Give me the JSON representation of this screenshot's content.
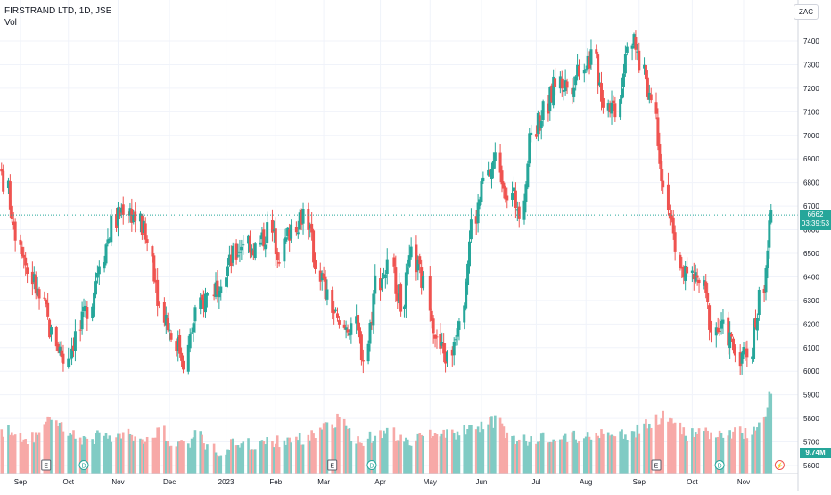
{
  "legend": {
    "symbol_line": "FIRSTRAND LTD, 1D, JSE",
    "volume_label": "Vol"
  },
  "currency": "ZAC",
  "last_price": {
    "value": "6662",
    "countdown": "03:39:53"
  },
  "last_volume": "9.74M",
  "colors": {
    "up": "#26a69a",
    "down": "#ef5350",
    "up_volume": "#80cbc4",
    "down_volume": "#f7a9a7",
    "grid": "#f0f3fa",
    "price_line": "#26a69a"
  },
  "events": [
    {
      "type": "earnings",
      "glyph": "E",
      "date_index": 0
    },
    {
      "type": "dividend",
      "glyph": "D",
      "date_index": 1
    },
    {
      "type": "earnings",
      "glyph": "E",
      "date_index": 2
    },
    {
      "type": "dividend",
      "glyph": "D",
      "date_index": 3
    },
    {
      "type": "earnings",
      "glyph": "E",
      "date_index": 4
    },
    {
      "type": "dividend",
      "glyph": "D",
      "date_index": 5
    },
    {
      "type": "flash",
      "glyph": "⚡",
      "date_index": 6
    }
  ],
  "event_dates": [
    "2022-09-20",
    "2022-10-12",
    "2023-03-06",
    "2023-03-29",
    "2023-09-11",
    "2023-10-18",
    "2023-11-22"
  ],
  "chart_data": {
    "type": "candlestick",
    "title": "FIRSTRAND LTD, 1D, JSE",
    "ylim": [
      5580,
      7550
    ],
    "yticks": [
      5600,
      5700,
      5800,
      5900,
      6000,
      6100,
      6200,
      6300,
      6400,
      6500,
      6600,
      6700,
      6800,
      6900,
      7000,
      7100,
      7200,
      7300,
      7400
    ],
    "xticks": [
      {
        "label": "Sep",
        "date": "2022-09-05"
      },
      {
        "label": "Oct",
        "date": "2022-10-03"
      },
      {
        "label": "Nov",
        "date": "2022-11-01"
      },
      {
        "label": "Dec",
        "date": "2022-12-01"
      },
      {
        "label": "2023",
        "date": "2023-01-03"
      },
      {
        "label": "Feb",
        "date": "2023-02-01"
      },
      {
        "label": "Mar",
        "date": "2023-03-01"
      },
      {
        "label": "Apr",
        "date": "2023-04-03"
      },
      {
        "label": "May",
        "date": "2023-05-02"
      },
      {
        "label": "Jun",
        "date": "2023-06-01"
      },
      {
        "label": "Jul",
        "date": "2023-07-03"
      },
      {
        "label": "Aug",
        "date": "2023-08-01"
      },
      {
        "label": "Sep",
        "date": "2023-09-01"
      },
      {
        "label": "Oct",
        "date": "2023-10-02"
      },
      {
        "label": "Nov",
        "date": "2023-11-01"
      }
    ],
    "grid": true,
    "last_close": 6662,
    "dates": [
      "2022-08-22",
      "2022-08-29",
      "2022-09-05",
      "2022-09-12",
      "2022-09-19",
      "2022-09-26",
      "2022-10-03",
      "2022-10-10",
      "2022-10-17",
      "2022-10-24",
      "2022-10-31",
      "2022-11-07",
      "2022-11-14",
      "2022-11-21",
      "2022-11-28",
      "2022-12-05",
      "2022-12-12",
      "2022-12-19",
      "2022-12-27",
      "2023-01-03",
      "2023-01-09",
      "2023-01-16",
      "2023-01-23",
      "2023-01-30",
      "2023-02-06",
      "2023-02-13",
      "2023-02-20",
      "2023-02-27",
      "2023-03-06",
      "2023-03-13",
      "2023-03-20",
      "2023-03-27",
      "2023-04-03",
      "2023-04-11",
      "2023-04-17",
      "2023-04-24",
      "2023-05-02",
      "2023-05-08",
      "2023-05-15",
      "2023-05-22",
      "2023-05-29",
      "2023-06-05",
      "2023-06-12",
      "2023-06-19",
      "2023-06-26",
      "2023-07-03",
      "2023-07-10",
      "2023-07-17",
      "2023-07-24",
      "2023-07-31",
      "2023-08-07",
      "2023-08-14",
      "2023-08-21",
      "2023-08-28",
      "2023-09-04",
      "2023-09-11",
      "2023-09-18",
      "2023-09-25",
      "2023-10-02",
      "2023-10-09",
      "2023-10-16",
      "2023-10-23",
      "2023-10-30",
      "2023-11-06",
      "2023-11-13",
      "2023-11-20"
    ],
    "close": [
      6950,
      6800,
      6600,
      6420,
      6300,
      6150,
      6050,
      6150,
      6270,
      6480,
      6620,
      6700,
      6650,
      6540,
      6280,
      6150,
      6050,
      6250,
      6330,
      6410,
      6480,
      6560,
      6520,
      6600,
      6500,
      6620,
      6680,
      6450,
      6300,
      6170,
      6210,
      6060,
      6380,
      6440,
      6290,
      6480,
      6360,
      6110,
      6050,
      6260,
      6620,
      6800,
      6900,
      6750,
      6700,
      7020,
      7100,
      7230,
      7210,
      7300,
      7330,
      7150,
      7120,
      7420,
      7310,
      7150,
      6780,
      6480,
      6400,
      6380,
      6180,
      6170,
      6080,
      6070,
      6310,
      6660
    ],
    "volume_m": [
      4.4,
      4.9,
      4.5,
      3.9,
      4.8,
      6.9,
      5.2,
      4.1,
      3.7,
      4.6,
      3.8,
      4.4,
      4.3,
      3.9,
      5.1,
      3.4,
      3.2,
      4.5,
      3.1,
      2.6,
      3.7,
      3.2,
      3.4,
      3.9,
      3.6,
      4.1,
      3.8,
      4.6,
      5.7,
      6.3,
      4.0,
      3.9,
      4.4,
      4.6,
      4.1,
      3.9,
      4.4,
      5.1,
      4.6,
      4.7,
      5.3,
      5.6,
      6.1,
      4.3,
      3.7,
      4.0,
      4.2,
      3.8,
      4.3,
      4.1,
      4.4,
      4.7,
      4.2,
      4.4,
      5.1,
      6.0,
      6.7,
      5.5,
      4.3,
      5.0,
      4.6,
      4.4,
      4.6,
      4.7,
      5.2,
      9.74
    ]
  }
}
